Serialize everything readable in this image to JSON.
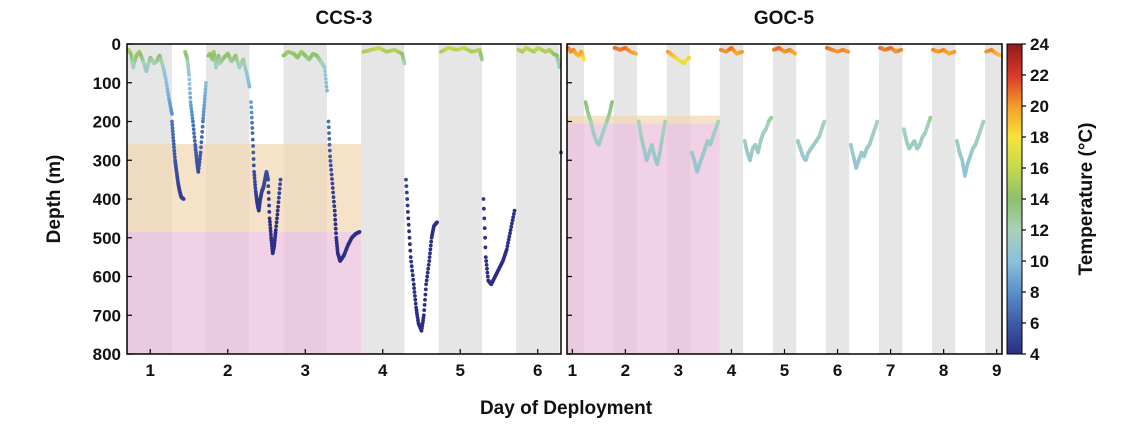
{
  "chart_data": {
    "type": "scatter",
    "xlabel": "Day of Deployment",
    "ylabel": "Depth (m)",
    "ylim": [
      0,
      800
    ],
    "yticks": [
      0,
      100,
      200,
      300,
      400,
      500,
      600,
      700,
      800
    ],
    "y_inverted": true,
    "colorbar": {
      "label": "Temperature (°C)",
      "range": [
        4,
        24
      ],
      "ticks": [
        4,
        6,
        8,
        10,
        12,
        14,
        16,
        18,
        20,
        22,
        24
      ],
      "stops": [
        "#2c2f85",
        "#3e5aa8",
        "#5a90c8",
        "#8cc0dd",
        "#a7d2b8",
        "#8dc06e",
        "#c6d84e",
        "#f6e33a",
        "#f39c2b",
        "#d9382a",
        "#8e1b1b"
      ]
    },
    "panels": [
      {
        "title": "CCS-3",
        "xlim": [
          0.7,
          6.3
        ],
        "xticks": [
          1,
          2,
          3,
          4,
          5,
          6
        ],
        "night_bands": [
          [
            0.7,
            1.28
          ],
          [
            1.72,
            2.28
          ],
          [
            2.72,
            3.28
          ],
          [
            3.72,
            4.28
          ],
          [
            4.72,
            5.28
          ],
          [
            5.72,
            6.28
          ]
        ],
        "layers": [
          {
            "ymin": 258,
            "ymax": 485,
            "x_end": 3.72,
            "color": "#f3d6b4"
          },
          {
            "ymin": 485,
            "ymax": 800,
            "x_end": 3.72,
            "color": "#ebbfdc"
          }
        ],
        "series": [
          {
            "x": [
              0.72,
              0.75,
              0.78,
              0.82,
              0.86,
              0.9,
              0.95,
              1.0,
              1.05,
              1.08,
              1.12,
              1.16,
              1.2,
              1.24,
              1.28
            ],
            "y": [
              15,
              25,
              60,
              30,
              20,
              40,
              70,
              35,
              50,
              45,
              30,
              55,
              90,
              140,
              180
            ]
          },
          {
            "x": [
              1.28,
              1.3,
              1.32,
              1.34,
              1.36,
              1.38,
              1.4,
              1.43
            ],
            "y": [
              200,
              250,
              300,
              330,
              360,
              380,
              395,
              400
            ]
          },
          {
            "x": [
              1.45,
              1.48,
              1.5,
              1.52,
              1.55,
              1.58,
              1.6,
              1.62,
              1.65,
              1.68,
              1.7,
              1.72
            ],
            "y": [
              20,
              40,
              80,
              150,
              200,
              260,
              300,
              330,
              280,
              200,
              150,
              100
            ]
          },
          {
            "x": [
              1.75,
              1.78,
              1.8,
              1.82,
              1.85,
              1.88,
              1.9,
              1.95,
              2.0,
              2.05,
              2.1,
              2.15,
              2.2,
              2.25,
              2.28
            ],
            "y": [
              30,
              25,
              40,
              20,
              60,
              30,
              50,
              35,
              25,
              45,
              30,
              60,
              40,
              80,
              110
            ]
          },
          {
            "x": [
              2.3,
              2.32,
              2.34,
              2.36,
              2.38,
              2.4,
              2.42,
              2.44,
              2.46,
              2.48,
              2.5,
              2.52,
              2.54,
              2.56,
              2.58,
              2.6,
              2.62,
              2.65,
              2.68
            ],
            "y": [
              150,
              230,
              330,
              380,
              410,
              430,
              400,
              380,
              370,
              350,
              330,
              350,
              450,
              500,
              540,
              520,
              480,
              420,
              350
            ]
          },
          {
            "x": [
              2.72,
              2.78,
              2.85,
              2.9,
              2.95,
              3.0,
              3.05,
              3.1,
              3.15,
              3.2,
              3.25,
              3.28
            ],
            "y": [
              30,
              20,
              25,
              35,
              20,
              30,
              40,
              25,
              30,
              45,
              60,
              120
            ]
          },
          {
            "x": [
              3.3,
              3.32,
              3.35,
              3.38,
              3.4,
              3.42,
              3.45,
              3.5,
              3.55,
              3.6,
              3.65,
              3.7
            ],
            "y": [
              200,
              290,
              360,
              430,
              500,
              540,
              560,
              545,
              520,
              500,
              490,
              485
            ]
          },
          {
            "x": [
              3.75,
              3.85,
              3.95,
              4.05,
              4.15,
              4.25,
              4.28
            ],
            "y": [
              20,
              15,
              10,
              20,
              15,
              25,
              50
            ]
          },
          {
            "x": [
              4.3,
              4.33,
              4.36,
              4.4,
              4.43,
              4.46,
              4.5,
              4.53,
              4.56,
              4.6,
              4.63,
              4.66,
              4.7
            ],
            "y": [
              350,
              450,
              550,
              620,
              680,
              720,
              740,
              700,
              620,
              560,
              500,
              470,
              460
            ]
          },
          {
            "x": [
              4.75,
              4.85,
              4.95,
              5.05,
              5.15,
              5.25,
              5.28
            ],
            "y": [
              20,
              10,
              15,
              10,
              20,
              15,
              40
            ]
          },
          {
            "x": [
              5.3,
              5.33,
              5.36,
              5.4,
              5.45,
              5.5,
              5.55,
              5.6,
              5.65,
              5.7
            ],
            "y": [
              400,
              550,
              610,
              620,
              600,
              580,
              560,
              530,
              480,
              430
            ]
          },
          {
            "x": [
              5.75,
              5.8,
              5.85,
              5.9,
              5.95,
              6.0,
              6.05,
              6.1,
              6.15,
              6.2,
              6.25,
              6.28
            ],
            "y": [
              15,
              20,
              10,
              15,
              20,
              10,
              15,
              20,
              15,
              25,
              30,
              60
            ]
          },
          {
            "x": [
              6.3
            ],
            "y": [
              280
            ]
          }
        ]
      },
      {
        "title": "GOC-5",
        "xlim": [
          0.9,
          9.1
        ],
        "xticks": [
          1,
          2,
          3,
          4,
          5,
          6,
          7,
          8,
          9
        ],
        "night_bands": [
          [
            0.9,
            1.22
          ],
          [
            1.78,
            2.22
          ],
          [
            2.78,
            3.22
          ],
          [
            3.78,
            4.22
          ],
          [
            4.78,
            5.22
          ],
          [
            5.78,
            6.22
          ],
          [
            6.78,
            7.22
          ],
          [
            7.78,
            8.22
          ],
          [
            8.78,
            9.1
          ]
        ],
        "layers": [
          {
            "ymin": 185,
            "ymax": 205,
            "x_end": 3.78,
            "color": "#f3d6b4"
          },
          {
            "ymin": 205,
            "ymax": 800,
            "x_end": 3.78,
            "color": "#ebbfdc"
          }
        ],
        "series": [
          {
            "x": [
              0.92,
              0.97,
              1.02,
              1.07,
              1.12,
              1.17,
              1.22
            ],
            "y": [
              10,
              20,
              15,
              25,
              30,
              20,
              40
            ]
          },
          {
            "x": [
              1.25,
              1.3,
              1.35,
              1.4,
              1.45,
              1.5,
              1.55,
              1.6,
              1.65,
              1.7,
              1.75
            ],
            "y": [
              150,
              180,
              200,
              230,
              250,
              260,
              240,
              220,
              200,
              180,
              150
            ]
          },
          {
            "x": [
              1.8,
              1.9,
              2.0,
              2.1,
              2.2
            ],
            "y": [
              10,
              15,
              10,
              20,
              25
            ]
          },
          {
            "x": [
              2.25,
              2.3,
              2.35,
              2.4,
              2.45,
              2.5,
              2.55,
              2.6,
              2.65,
              2.7,
              2.75
            ],
            "y": [
              200,
              240,
              270,
              300,
              280,
              260,
              290,
              310,
              280,
              240,
              200
            ]
          },
          {
            "x": [
              2.8,
              2.9,
              3.0,
              3.1,
              3.2
            ],
            "y": [
              20,
              30,
              40,
              50,
              35
            ]
          },
          {
            "x": [
              3.25,
              3.3,
              3.35,
              3.4,
              3.45,
              3.5,
              3.55,
              3.6,
              3.65,
              3.7,
              3.75
            ],
            "y": [
              280,
              300,
              330,
              310,
              290,
              270,
              250,
              260,
              240,
              220,
              200
            ]
          },
          {
            "x": [
              3.8,
              3.9,
              4.0,
              4.1,
              4.2
            ],
            "y": [
              15,
              20,
              10,
              25,
              20
            ]
          },
          {
            "x": [
              4.25,
              4.3,
              4.35,
              4.4,
              4.45,
              4.5,
              4.55,
              4.6,
              4.65,
              4.7,
              4.75
            ],
            "y": [
              250,
              280,
              300,
              270,
              260,
              280,
              250,
              230,
              220,
              200,
              190
            ]
          },
          {
            "x": [
              4.8,
              4.9,
              5.0,
              5.1,
              5.2
            ],
            "y": [
              15,
              10,
              20,
              15,
              25
            ]
          },
          {
            "x": [
              5.25,
              5.3,
              5.35,
              5.4,
              5.45,
              5.5,
              5.55,
              5.6,
              5.65,
              5.7,
              5.75
            ],
            "y": [
              250,
              270,
              290,
              300,
              280,
              270,
              260,
              250,
              240,
              220,
              200
            ]
          },
          {
            "x": [
              5.8,
              5.9,
              6.0,
              6.1,
              6.2
            ],
            "y": [
              10,
              15,
              20,
              15,
              20
            ]
          },
          {
            "x": [
              6.25,
              6.3,
              6.35,
              6.4,
              6.45,
              6.5,
              6.55,
              6.6,
              6.65,
              6.7,
              6.75
            ],
            "y": [
              260,
              290,
              320,
              300,
              280,
              290,
              270,
              260,
              240,
              220,
              200
            ]
          },
          {
            "x": [
              6.8,
              6.9,
              7.0,
              7.1,
              7.2
            ],
            "y": [
              10,
              15,
              10,
              20,
              15
            ]
          },
          {
            "x": [
              7.25,
              7.3,
              7.35,
              7.4,
              7.45,
              7.5,
              7.55,
              7.6,
              7.65,
              7.7,
              7.75
            ],
            "y": [
              220,
              250,
              270,
              260,
              250,
              270,
              260,
              240,
              230,
              210,
              190
            ]
          },
          {
            "x": [
              7.8,
              7.9,
              8.0,
              8.1,
              8.2
            ],
            "y": [
              15,
              20,
              15,
              25,
              20
            ]
          },
          {
            "x": [
              8.25,
              8.3,
              8.35,
              8.4,
              8.45,
              8.5,
              8.55,
              8.6,
              8.65,
              8.7,
              8.75
            ],
            "y": [
              250,
              280,
              300,
              340,
              310,
              290,
              270,
              260,
              240,
              220,
              200
            ]
          },
          {
            "x": [
              8.8,
              8.9,
              9.0,
              9.08
            ],
            "y": [
              20,
              15,
              25,
              30
            ]
          }
        ]
      }
    ]
  }
}
